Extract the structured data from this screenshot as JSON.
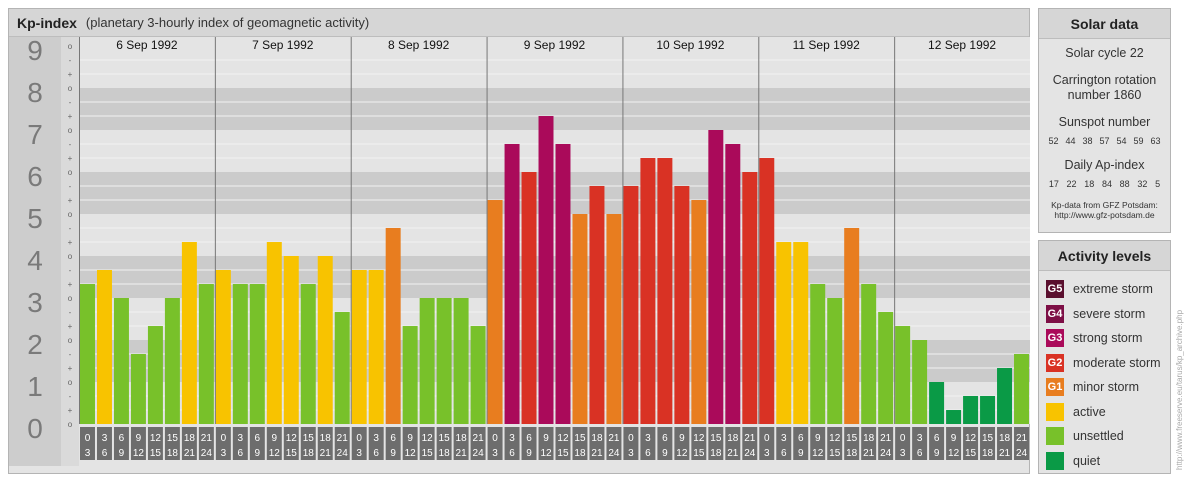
{
  "header": {
    "title": "Kp-index",
    "subtitle": "(planetary 3-hourly index of geomagnetic activity)"
  },
  "chart_data": {
    "type": "bar",
    "ylim": [
      0,
      9
    ],
    "y_ticks": [
      "0",
      "1",
      "2",
      "3",
      "4",
      "5",
      "6",
      "7",
      "8",
      "9"
    ],
    "sub_tick_labels": [
      "o",
      "+",
      "-"
    ],
    "grid": true,
    "days": [
      "6 Sep 1992",
      "7 Sep 1992",
      "8 Sep 1992",
      "9 Sep 1992",
      "10 Sep 1992",
      "11 Sep 1992",
      "12 Sep 1992"
    ],
    "hour_labels": [
      [
        "0",
        "3"
      ],
      [
        "3",
        "6"
      ],
      [
        "6",
        "9"
      ],
      [
        "9",
        "12"
      ],
      [
        "12",
        "15"
      ],
      [
        "15",
        "18"
      ],
      [
        "18",
        "21"
      ],
      [
        "21",
        "24"
      ]
    ],
    "values": [
      3.333,
      3.667,
      3.0,
      1.667,
      2.333,
      3.0,
      4.333,
      3.333,
      3.667,
      3.333,
      3.333,
      4.333,
      4.0,
      3.333,
      4.0,
      2.667,
      3.667,
      3.667,
      4.667,
      2.333,
      3.0,
      3.0,
      3.0,
      2.333,
      5.333,
      6.667,
      6.0,
      7.333,
      6.667,
      5.0,
      5.667,
      5.0,
      5.667,
      6.333,
      6.333,
      5.667,
      5.333,
      7.0,
      6.667,
      6.0,
      6.333,
      4.333,
      4.333,
      3.333,
      3.0,
      4.667,
      3.333,
      2.667,
      2.333,
      2.0,
      1.0,
      0.333,
      0.667,
      0.667,
      1.333,
      1.667
    ]
  },
  "solar": {
    "title": "Solar data",
    "cycle": "Solar cycle 22",
    "carrington_1": "Carrington rotation",
    "carrington_2": "number 1860",
    "sunspot_title": "Sunspot number",
    "sunspot_values": [
      "52",
      "44",
      "38",
      "57",
      "54",
      "59",
      "63"
    ],
    "ap_title": "Daily Ap-index",
    "ap_values": [
      "17",
      "22",
      "18",
      "84",
      "88",
      "32",
      "5"
    ],
    "source_1": "Kp-data from  GFZ Potsdam:",
    "source_2": "http://www.gfz-potsdam.de"
  },
  "levels": {
    "title": "Activity levels",
    "items": [
      {
        "badge": "G5",
        "label": "extreme storm",
        "color": "#5a0f2e"
      },
      {
        "badge": "G4",
        "label": "severe storm",
        "color": "#7d0f46"
      },
      {
        "badge": "G3",
        "label": "strong storm",
        "color": "#aa0a5a"
      },
      {
        "badge": "G2",
        "label": "moderate storm",
        "color": "#d93224"
      },
      {
        "badge": "G1",
        "label": "minor storm",
        "color": "#e87d1f"
      },
      {
        "badge": "",
        "label": "active",
        "color": "#f8c300"
      },
      {
        "badge": "",
        "label": "unsettled",
        "color": "#78c12a"
      },
      {
        "badge": "",
        "label": "quiet",
        "color": "#0a9a46"
      }
    ]
  },
  "credit": "http://www.freeserve.eu/tarus/kp_archive.php"
}
